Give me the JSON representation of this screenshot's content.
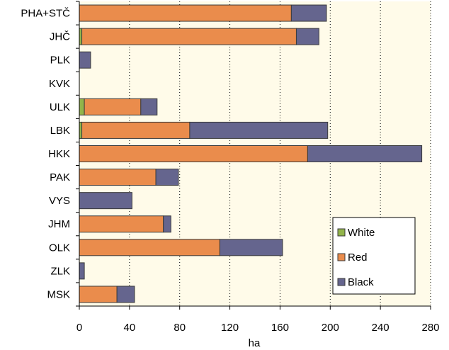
{
  "chart_data": {
    "type": "bar",
    "orientation": "horizontal",
    "stacked": true,
    "title": "",
    "xlabel": "ha",
    "ylabel": "",
    "xlim": [
      0,
      280
    ],
    "x_ticks": [
      0,
      40,
      80,
      120,
      160,
      200,
      240,
      280
    ],
    "grid": true,
    "legend_position": "bottom-right",
    "categories": [
      "PHA+STČ",
      "JHČ",
      "PLK",
      "KVK",
      "ULK",
      "LBK",
      "HKK",
      "PAK",
      "VYS",
      "JHM",
      "OLK",
      "ZLK",
      "MSK"
    ],
    "series": [
      {
        "name": "White",
        "color": "#92b44a",
        "values": [
          0,
          2,
          0,
          0,
          4,
          2,
          0,
          0,
          0,
          0,
          0,
          0,
          0
        ]
      },
      {
        "name": "Red",
        "color": "#ea8c4c",
        "values": [
          169,
          171,
          0,
          0,
          45,
          86,
          182,
          61,
          0,
          67,
          112,
          0,
          30
        ]
      },
      {
        "name": "Black",
        "color": "#65658e",
        "values": [
          28,
          18,
          9,
          0,
          13,
          110,
          91,
          18,
          42,
          6,
          50,
          4,
          14
        ]
      }
    ]
  }
}
